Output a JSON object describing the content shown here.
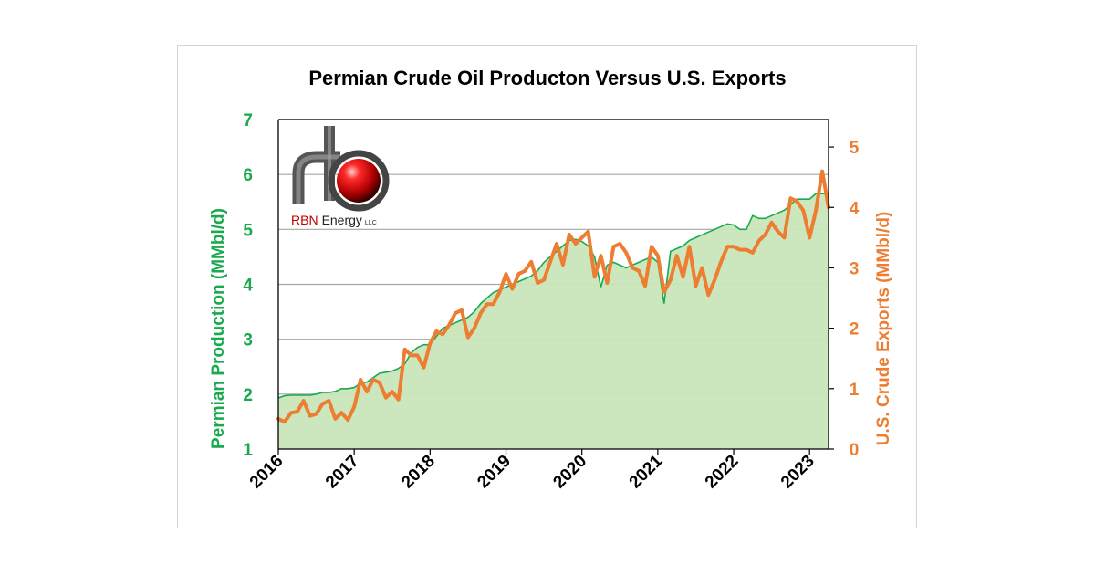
{
  "logo": {
    "name": "rbn-energy-logo",
    "text_rbn": "RBN",
    "text_energy": "Energy",
    "text_llc": "LLC"
  },
  "chart_data": {
    "type": "line",
    "title": "Permian Crude Oil Producton Versus U.S. Exports",
    "xlabel": "",
    "ylabel": "Permian Production (MMbl/d)",
    "y2label": "U.S. Crude Exports (MMbl/d)",
    "x_ticks": [
      "2016",
      "2017",
      "2018",
      "2019",
      "2020",
      "2021",
      "2022",
      "2023"
    ],
    "ylim": [
      1,
      7
    ],
    "y_ticks": [
      "1",
      "2",
      "3",
      "4",
      "5",
      "6",
      "7"
    ],
    "y2lim": [
      0,
      5
    ],
    "y2_ticks": [
      "0",
      "1",
      "2",
      "3",
      "4",
      "5"
    ],
    "grid": true,
    "colors": {
      "production": "#1aaa4e",
      "production_fill": "#c9e5b9",
      "exports": "#ed7d31"
    },
    "series": [
      {
        "name": "",
        "axis": "left",
        "style": "area",
        "x": [
          2016.0,
          2016.083,
          2016.167,
          2016.25,
          2016.333,
          2016.417,
          2016.5,
          2016.583,
          2016.667,
          2016.75,
          2016.833,
          2016.917,
          2017.0,
          2017.083,
          2017.167,
          2017.25,
          2017.333,
          2017.417,
          2017.5,
          2017.583,
          2017.667,
          2017.75,
          2017.833,
          2017.917,
          2018.0,
          2018.083,
          2018.167,
          2018.25,
          2018.333,
          2018.417,
          2018.5,
          2018.583,
          2018.667,
          2018.75,
          2018.833,
          2018.917,
          2019.0,
          2019.083,
          2019.167,
          2019.25,
          2019.333,
          2019.417,
          2019.5,
          2019.583,
          2019.667,
          2019.75,
          2019.833,
          2019.917,
          2020.0,
          2020.083,
          2020.167,
          2020.25,
          2020.333,
          2020.417,
          2020.5,
          2020.583,
          2020.667,
          2020.75,
          2020.833,
          2020.917,
          2021.0,
          2021.083,
          2021.167,
          2021.25,
          2021.333,
          2021.417,
          2021.5,
          2021.583,
          2021.667,
          2021.75,
          2021.833,
          2021.917,
          2022.0,
          2022.083,
          2022.167,
          2022.25,
          2022.333,
          2022.417,
          2022.5,
          2022.583,
          2022.667,
          2022.75,
          2022.833,
          2022.917,
          2023.0,
          2023.083,
          2023.167,
          2023.25
        ],
        "values": [
          1.93,
          1.97,
          1.98,
          1.98,
          1.98,
          1.98,
          2.0,
          2.03,
          2.03,
          2.05,
          2.1,
          2.1,
          2.12,
          2.2,
          2.22,
          2.3,
          2.38,
          2.4,
          2.42,
          2.47,
          2.55,
          2.75,
          2.85,
          2.9,
          2.9,
          3.05,
          3.2,
          3.25,
          3.3,
          3.35,
          3.4,
          3.5,
          3.65,
          3.75,
          3.85,
          3.9,
          3.95,
          4.0,
          4.05,
          4.1,
          4.15,
          4.25,
          4.4,
          4.5,
          4.6,
          4.7,
          4.8,
          4.82,
          4.78,
          4.7,
          4.5,
          3.95,
          4.35,
          4.4,
          4.35,
          4.3,
          4.35,
          4.4,
          4.45,
          4.5,
          4.4,
          3.65,
          4.6,
          4.65,
          4.7,
          4.8,
          4.85,
          4.9,
          4.95,
          5.0,
          5.05,
          5.1,
          5.08,
          5.0,
          5.0,
          5.25,
          5.2,
          5.2,
          5.25,
          5.3,
          5.35,
          5.45,
          5.55,
          5.55,
          5.55,
          5.65,
          5.65,
          5.65
        ]
      },
      {
        "name": "",
        "axis": "right",
        "style": "line",
        "x": [
          2016.0,
          2016.083,
          2016.167,
          2016.25,
          2016.333,
          2016.417,
          2016.5,
          2016.583,
          2016.667,
          2016.75,
          2016.833,
          2016.917,
          2017.0,
          2017.083,
          2017.167,
          2017.25,
          2017.333,
          2017.417,
          2017.5,
          2017.583,
          2017.667,
          2017.75,
          2017.833,
          2017.917,
          2018.0,
          2018.083,
          2018.167,
          2018.25,
          2018.333,
          2018.417,
          2018.5,
          2018.583,
          2018.667,
          2018.75,
          2018.833,
          2018.917,
          2019.0,
          2019.083,
          2019.167,
          2019.25,
          2019.333,
          2019.417,
          2019.5,
          2019.583,
          2019.667,
          2019.75,
          2019.833,
          2019.917,
          2020.0,
          2020.083,
          2020.167,
          2020.25,
          2020.333,
          2020.417,
          2020.5,
          2020.583,
          2020.667,
          2020.75,
          2020.833,
          2020.917,
          2021.0,
          2021.083,
          2021.167,
          2021.25,
          2021.333,
          2021.417,
          2021.5,
          2021.583,
          2021.667,
          2021.75,
          2021.833,
          2021.917,
          2022.0,
          2022.083,
          2022.167,
          2022.25,
          2022.333,
          2022.417,
          2022.5,
          2022.583,
          2022.667,
          2022.75,
          2022.833,
          2022.917,
          2023.0,
          2023.083,
          2023.167,
          2023.25
        ],
        "values": [
          0.5,
          0.45,
          0.6,
          0.62,
          0.8,
          0.55,
          0.58,
          0.75,
          0.8,
          0.5,
          0.6,
          0.48,
          0.7,
          1.15,
          0.95,
          1.15,
          1.1,
          0.85,
          0.95,
          0.82,
          1.65,
          1.55,
          1.55,
          1.35,
          1.75,
          1.95,
          1.9,
          2.05,
          2.25,
          2.3,
          1.85,
          2.0,
          2.25,
          2.4,
          2.4,
          2.6,
          2.9,
          2.65,
          2.9,
          2.95,
          3.1,
          2.75,
          2.8,
          3.1,
          3.4,
          3.05,
          3.55,
          3.4,
          3.5,
          3.6,
          2.85,
          3.2,
          2.75,
          3.35,
          3.4,
          3.25,
          3.0,
          2.95,
          2.7,
          3.35,
          3.2,
          2.6,
          2.8,
          3.2,
          2.85,
          3.35,
          2.7,
          3.0,
          2.55,
          2.8,
          3.1,
          3.35,
          3.35,
          3.3,
          3.3,
          3.25,
          3.45,
          3.55,
          3.75,
          3.6,
          3.5,
          4.15,
          4.1,
          3.95,
          3.5,
          3.95,
          4.6,
          4.0
        ]
      }
    ]
  }
}
